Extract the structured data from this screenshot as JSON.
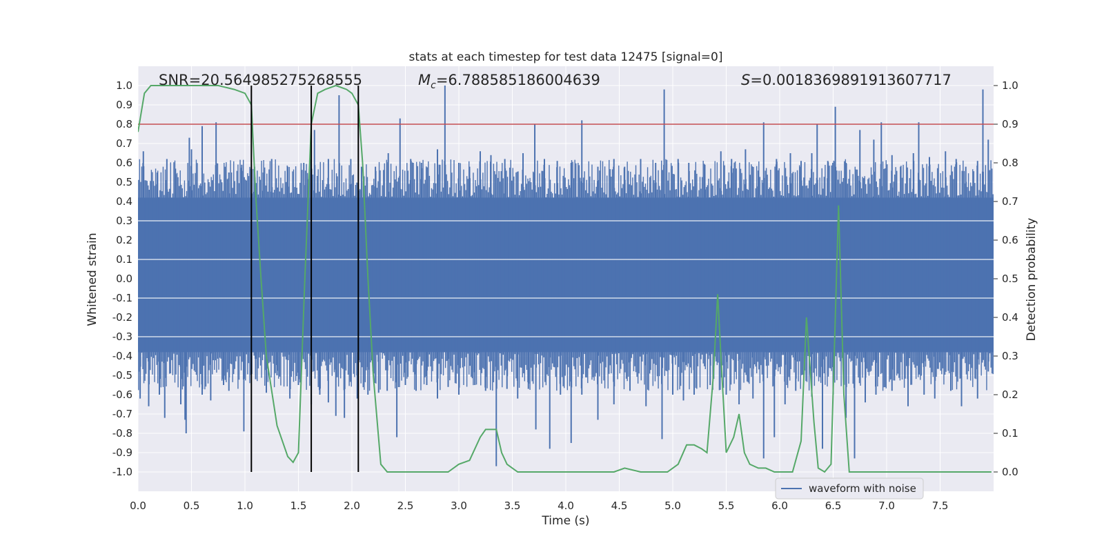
{
  "chart_data": {
    "type": "line",
    "title": "stats at each timestep for test data 12475 [signal=0]",
    "xlabel": "Time (s)",
    "ylabel_left": "Whitened strain",
    "ylabel_right": "Detection probability",
    "xlim": [
      0,
      8
    ],
    "ylim_left": [
      -1.1,
      1.1
    ],
    "ylim_right": [
      -0.05,
      1.05
    ],
    "x_ticks": [
      "0.0",
      "0.5",
      "1.0",
      "1.5",
      "2.0",
      "2.5",
      "3.0",
      "3.5",
      "4.0",
      "4.5",
      "5.0",
      "5.5",
      "6.0",
      "6.5",
      "7.0",
      "7.5"
    ],
    "x_tick_values": [
      0,
      0.5,
      1,
      1.5,
      2,
      2.5,
      3,
      3.5,
      4,
      4.5,
      5,
      5.5,
      6,
      6.5,
      7,
      7.5
    ],
    "y_left_ticks": [
      "1.0",
      "0.9",
      "0.8",
      "0.7",
      "0.6",
      "0.5",
      "0.4",
      "0.3",
      "0.2",
      "0.1",
      "0.0",
      "-0.1",
      "-0.2",
      "-0.3",
      "-0.4",
      "-0.5",
      "-0.6",
      "-0.7",
      "-0.8",
      "-0.9",
      "-1.0"
    ],
    "y_left_tick_values": [
      1.0,
      0.9,
      0.8,
      0.7,
      0.6,
      0.5,
      0.4,
      0.3,
      0.2,
      0.1,
      0.0,
      -0.1,
      -0.2,
      -0.3,
      -0.4,
      -0.5,
      -0.6,
      -0.7,
      -0.8,
      -0.9,
      -1.0
    ],
    "y_right_ticks": [
      "1.0",
      "0.9",
      "0.8",
      "0.7",
      "0.6",
      "0.5",
      "0.4",
      "0.3",
      "0.2",
      "0.1",
      "0.0"
    ],
    "y_right_tick_values": [
      1.0,
      0.9,
      0.8,
      0.7,
      0.6,
      0.5,
      0.4,
      0.3,
      0.2,
      0.1,
      0.0
    ],
    "annotations": {
      "snr": "SNR=20.564985275268555",
      "mc_symbol": "M",
      "mc_subscript": "c",
      "mc_value": "=6.788585186004639",
      "s_symbol": "S",
      "s_value": "=0.0018369891913607717"
    },
    "threshold": {
      "value": 0.9,
      "axis": "right",
      "color": "#c44e52"
    },
    "vertical_lines": [
      1.06,
      1.62,
      2.06
    ],
    "legend": {
      "label": "waveform with noise",
      "placement": "bottom-right",
      "color": "#4c72b0"
    },
    "waveform": {
      "name": "waveform with noise",
      "color": "#4c72b0",
      "band_top": 0.42,
      "band_bottom": -0.38,
      "upper_spikes": [
        [
          0.05,
          0.66
        ],
        [
          0.18,
          0.55
        ],
        [
          0.27,
          0.62
        ],
        [
          0.35,
          0.57
        ],
        [
          0.48,
          0.73
        ],
        [
          0.5,
          0.67
        ],
        [
          0.6,
          0.79
        ],
        [
          0.73,
          0.81
        ],
        [
          0.85,
          0.55
        ],
        [
          0.97,
          0.59
        ],
        [
          1.09,
          0.58
        ],
        [
          1.17,
          0.55
        ],
        [
          1.25,
          0.62
        ],
        [
          1.4,
          0.58
        ],
        [
          1.55,
          0.6
        ],
        [
          1.65,
          0.77
        ],
        [
          1.78,
          0.62
        ],
        [
          1.88,
          0.95
        ],
        [
          1.99,
          0.62
        ],
        [
          2.09,
          0.58
        ],
        [
          2.22,
          0.58
        ],
        [
          2.34,
          0.65
        ],
        [
          2.45,
          0.83
        ],
        [
          2.55,
          0.62
        ],
        [
          2.65,
          0.6
        ],
        [
          2.8,
          0.67
        ],
        [
          2.87,
          1.0
        ],
        [
          3.0,
          0.6
        ],
        [
          3.1,
          0.58
        ],
        [
          3.2,
          0.66
        ],
        [
          3.3,
          0.64
        ],
        [
          3.43,
          0.62
        ],
        [
          3.6,
          0.65
        ],
        [
          3.71,
          0.8
        ],
        [
          3.8,
          0.62
        ],
        [
          3.92,
          0.61
        ],
        [
          4.05,
          0.6
        ],
        [
          4.15,
          0.82
        ],
        [
          4.3,
          0.58
        ],
        [
          4.45,
          0.62
        ],
        [
          4.55,
          0.58
        ],
        [
          4.7,
          0.62
        ],
        [
          4.84,
          0.6
        ],
        [
          4.92,
          0.98
        ],
        [
          5.05,
          0.62
        ],
        [
          5.15,
          0.6
        ],
        [
          5.3,
          0.59
        ],
        [
          5.45,
          0.66
        ],
        [
          5.55,
          0.62
        ],
        [
          5.68,
          0.67
        ],
        [
          5.8,
          0.56
        ],
        [
          5.85,
          0.81
        ],
        [
          5.97,
          0.62
        ],
        [
          6.1,
          0.65
        ],
        [
          6.2,
          0.61
        ],
        [
          6.3,
          0.65
        ],
        [
          6.35,
          0.8
        ],
        [
          6.45,
          0.61
        ],
        [
          6.52,
          0.89
        ],
        [
          6.62,
          0.6
        ],
        [
          6.75,
          0.77
        ],
        [
          6.88,
          0.72
        ],
        [
          6.95,
          0.81
        ],
        [
          7.05,
          0.64
        ],
        [
          7.13,
          0.58
        ],
        [
          7.25,
          0.65
        ],
        [
          7.3,
          0.81
        ],
        [
          7.4,
          0.63
        ],
        [
          7.55,
          0.66
        ],
        [
          7.65,
          0.62
        ],
        [
          7.74,
          0.58
        ],
        [
          7.85,
          0.61
        ],
        [
          7.9,
          0.98
        ],
        [
          7.95,
          0.72
        ]
      ],
      "lower_spikes": [
        [
          0.02,
          -0.62
        ],
        [
          0.1,
          -0.66
        ],
        [
          0.2,
          -0.6
        ],
        [
          0.25,
          -0.72
        ],
        [
          0.4,
          -0.65
        ],
        [
          0.44,
          -0.73
        ],
        [
          0.45,
          -0.8
        ],
        [
          0.6,
          -0.6
        ],
        [
          0.68,
          -0.63
        ],
        [
          0.8,
          -0.55
        ],
        [
          0.85,
          -0.58
        ],
        [
          0.99,
          -0.79
        ],
        [
          1.1,
          -0.52
        ],
        [
          1.2,
          -0.59
        ],
        [
          1.3,
          -0.5
        ],
        [
          1.42,
          -0.62
        ],
        [
          1.5,
          -0.55
        ],
        [
          1.62,
          -0.65
        ],
        [
          1.7,
          -0.6
        ],
        [
          1.78,
          -0.64
        ],
        [
          1.85,
          -0.71
        ],
        [
          1.93,
          -0.72
        ],
        [
          2.05,
          -0.62
        ],
        [
          2.15,
          -0.6
        ],
        [
          2.25,
          -0.59
        ],
        [
          2.33,
          -0.58
        ],
        [
          2.42,
          -0.82
        ],
        [
          2.5,
          -0.55
        ],
        [
          2.6,
          -0.58
        ],
        [
          2.7,
          -0.55
        ],
        [
          2.8,
          -0.62
        ],
        [
          2.9,
          -0.56
        ],
        [
          3.0,
          -0.6
        ],
        [
          3.15,
          -0.55
        ],
        [
          3.25,
          -0.58
        ],
        [
          3.35,
          -0.97
        ],
        [
          3.45,
          -0.57
        ],
        [
          3.55,
          -0.62
        ],
        [
          3.65,
          -0.57
        ],
        [
          3.72,
          -0.78
        ],
        [
          3.85,
          -0.88
        ],
        [
          3.95,
          -0.6
        ],
        [
          4.05,
          -0.85
        ],
        [
          4.15,
          -0.6
        ],
        [
          4.3,
          -0.73
        ],
        [
          4.45,
          -0.65
        ],
        [
          4.6,
          -0.58
        ],
        [
          4.75,
          -0.66
        ],
        [
          4.9,
          -0.83
        ],
        [
          5.0,
          -0.6
        ],
        [
          5.1,
          -0.63
        ],
        [
          5.2,
          -0.6
        ],
        [
          5.35,
          -0.55
        ],
        [
          5.5,
          -0.6
        ],
        [
          5.62,
          -0.65
        ],
        [
          5.75,
          -0.62
        ],
        [
          5.85,
          -0.93
        ],
        [
          5.95,
          -0.82
        ],
        [
          6.05,
          -0.65
        ],
        [
          6.15,
          -0.58
        ],
        [
          6.3,
          -0.61
        ],
        [
          6.4,
          -0.88
        ],
        [
          6.5,
          -0.6
        ],
        [
          6.62,
          -0.72
        ],
        [
          6.7,
          -0.93
        ],
        [
          6.8,
          -0.64
        ],
        [
          6.9,
          -0.6
        ],
        [
          7.05,
          -0.58
        ],
        [
          7.2,
          -0.66
        ],
        [
          7.35,
          -0.6
        ],
        [
          7.45,
          -0.62
        ],
        [
          7.6,
          -0.58
        ],
        [
          7.7,
          -0.66
        ],
        [
          7.85,
          -0.62
        ],
        [
          7.95,
          -0.48
        ]
      ]
    },
    "detection_probability": {
      "name": "detection probability",
      "color": "#55a868",
      "x": [
        0.0,
        0.06,
        0.12,
        0.25,
        0.5,
        0.75,
        0.9,
        1.0,
        1.06,
        1.1,
        1.15,
        1.2,
        1.3,
        1.4,
        1.45,
        1.5,
        1.56,
        1.62,
        1.68,
        1.75,
        1.85,
        1.95,
        2.0,
        2.06,
        2.1,
        2.15,
        2.2,
        2.27,
        2.33,
        2.4,
        2.5,
        2.65,
        2.8,
        2.9,
        3.0,
        3.1,
        3.2,
        3.25,
        3.3,
        3.35,
        3.4,
        3.45,
        3.5,
        3.55,
        3.65,
        3.75,
        3.9,
        4.05,
        4.2,
        4.3,
        4.45,
        4.55,
        4.7,
        4.85,
        4.95,
        5.05,
        5.13,
        5.2,
        5.27,
        5.32,
        5.38,
        5.42,
        5.46,
        5.5,
        5.57,
        5.62,
        5.67,
        5.72,
        5.8,
        5.87,
        5.95,
        6.02,
        6.12,
        6.2,
        6.25,
        6.32,
        6.36,
        6.42,
        6.48,
        6.55,
        6.6,
        6.65,
        6.7,
        6.8,
        6.95,
        7.1,
        7.3,
        7.5,
        7.7,
        7.9,
        7.98
      ],
      "y": [
        0.88,
        0.98,
        1.0,
        1.0,
        1.0,
        1.0,
        0.99,
        0.98,
        0.95,
        0.72,
        0.5,
        0.3,
        0.12,
        0.04,
        0.025,
        0.05,
        0.5,
        0.9,
        0.98,
        0.99,
        1.0,
        0.99,
        0.98,
        0.95,
        0.8,
        0.5,
        0.25,
        0.02,
        0.0,
        0.0,
        0.0,
        0.0,
        0.0,
        0.0,
        0.02,
        0.03,
        0.09,
        0.11,
        0.11,
        0.11,
        0.05,
        0.02,
        0.01,
        0.0,
        0.0,
        0.0,
        0.0,
        0.0,
        0.0,
        0.0,
        0.0,
        0.01,
        0.0,
        0.0,
        0.0,
        0.02,
        0.07,
        0.07,
        0.06,
        0.05,
        0.25,
        0.46,
        0.25,
        0.05,
        0.09,
        0.15,
        0.05,
        0.02,
        0.01,
        0.01,
        0.0,
        0.0,
        0.0,
        0.08,
        0.4,
        0.13,
        0.01,
        0.0,
        0.02,
        0.69,
        0.2,
        0.0,
        0.0,
        0.0,
        0.0,
        0.0,
        0.0,
        0.0,
        0.0,
        0.0,
        0.0
      ]
    }
  }
}
